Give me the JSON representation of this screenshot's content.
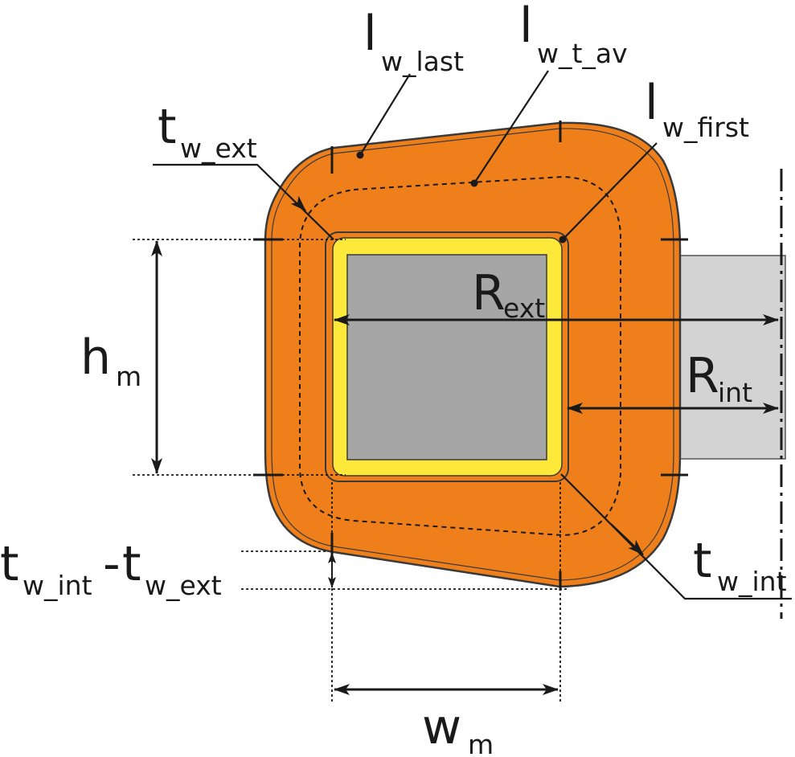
{
  "colors": {
    "winding": "#ee7f1b",
    "insulation": "#fde93a",
    "core": "#a6a6a6",
    "core_right": "#d3d3d3",
    "outline": "#3a3a3a"
  },
  "labels": {
    "l_w_last": {
      "main": "l",
      "sub": "w_last"
    },
    "l_w_t_av": {
      "main": "l",
      "sub": "w_t_av"
    },
    "l_w_first": {
      "main": "l",
      "sub": "w_first"
    },
    "t_w_ext": {
      "main": "t",
      "sub": "w_ext"
    },
    "R_ext": {
      "main": "R",
      "sub": "ext"
    },
    "R_int": {
      "main": "R",
      "sub": "int"
    },
    "h_m": {
      "main": "h",
      "sub": "m"
    },
    "t_w_int_minus_ext": {
      "main1": "t",
      "sub1": "w_int",
      "dash": "-",
      "main2": "t",
      "sub2": "w_ext"
    },
    "t_w_int": {
      "main": "t",
      "sub": "w_int"
    },
    "w_m": {
      "main": "w",
      "sub": "m"
    }
  }
}
